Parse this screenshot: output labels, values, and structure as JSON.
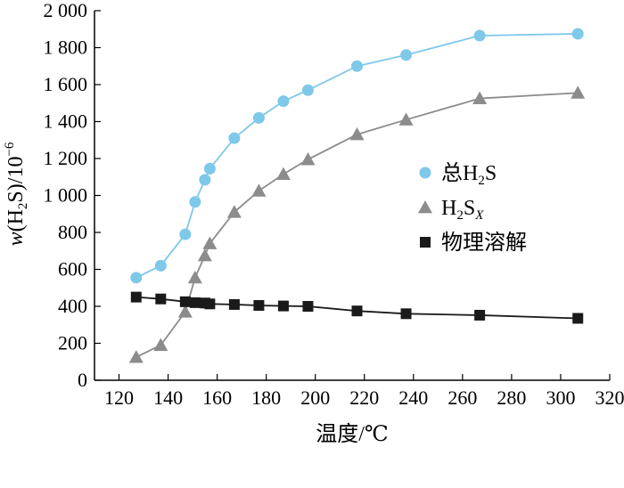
{
  "chart_data": {
    "type": "line",
    "xlabel": "温度/℃",
    "ylabel": "w(H2S)/10^-6",
    "xlim": [
      110,
      320
    ],
    "ylim": [
      0,
      2000
    ],
    "x_ticks": [
      120,
      140,
      160,
      180,
      200,
      220,
      240,
      260,
      280,
      300,
      320
    ],
    "y_ticks": [
      0,
      200,
      400,
      600,
      800,
      1000,
      1200,
      1400,
      1600,
      1800,
      2000
    ],
    "x_tick_labels": [
      "120",
      "140",
      "160",
      "180",
      "200",
      "220",
      "240",
      "260",
      "280",
      "300",
      "320"
    ],
    "y_tick_labels": [
      "0",
      "200",
      "400",
      "600",
      "800",
      "1 000",
      "1 200",
      "1 400",
      "1 600",
      "1 800",
      "2 000"
    ],
    "ylabel_parts": {
      "w": "w",
      "lparen": "(H",
      "sub2": "2",
      "rest": "S)/10",
      "sup": "−6"
    },
    "grid": false,
    "legend_position": "center-right",
    "series": [
      {
        "name": "总H2S",
        "label_main": "总H",
        "label_sub": "2",
        "label_tail": "S",
        "marker": "circle",
        "color": "#7ec8ea",
        "x": [
          127,
          137,
          147,
          151,
          155,
          157,
          167,
          177,
          187,
          197,
          217,
          237,
          267,
          307
        ],
        "y": [
          555,
          620,
          790,
          965,
          1085,
          1145,
          1310,
          1420,
          1510,
          1570,
          1700,
          1760,
          1865,
          1875
        ]
      },
      {
        "name": "H2SX",
        "label_main": "H",
        "label_sub": "2",
        "label_tail": "S",
        "label_sub2": "X",
        "marker": "triangle",
        "color": "#8c8c8c",
        "x": [
          127,
          137,
          147,
          151,
          155,
          157,
          167,
          177,
          187,
          197,
          217,
          237,
          267,
          307
        ],
        "y": [
          125,
          190,
          370,
          555,
          675,
          740,
          910,
          1025,
          1115,
          1195,
          1330,
          1410,
          1525,
          1555
        ]
      },
      {
        "name": "物理溶解",
        "label_main": "物理溶解",
        "marker": "square",
        "color": "#1a1a1a",
        "x": [
          127,
          137,
          147,
          151,
          155,
          157,
          167,
          177,
          187,
          197,
          217,
          237,
          267,
          307
        ],
        "y": [
          450,
          440,
          425,
          420,
          418,
          413,
          410,
          405,
          402,
          400,
          375,
          360,
          352,
          335
        ]
      }
    ]
  }
}
